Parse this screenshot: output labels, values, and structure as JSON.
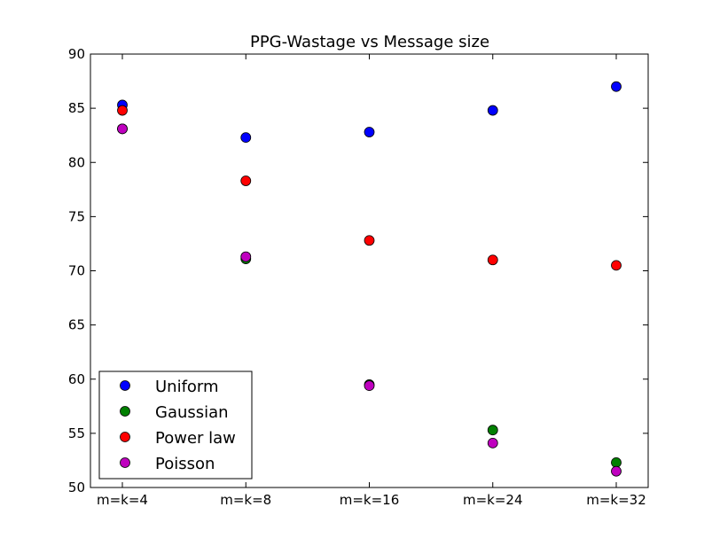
{
  "chart_data": {
    "type": "scatter",
    "title": "PPG-Wastage vs Message size",
    "xlabel": "",
    "ylabel": "",
    "categories": [
      "m=k=4",
      "m=k=8",
      "m=k=16",
      "m=k=24",
      "m=k=32"
    ],
    "ylim": [
      50,
      90
    ],
    "yticks": [
      50,
      55,
      60,
      65,
      70,
      75,
      80,
      85,
      90
    ],
    "grid": false,
    "legend_position": "bottom-left",
    "series": [
      {
        "name": "Uniform",
        "color": "#0000ff",
        "values": [
          85.3,
          82.3,
          82.8,
          84.8,
          87.0
        ]
      },
      {
        "name": "Gaussian",
        "color": "#008000",
        "values": [
          83.1,
          71.1,
          59.5,
          55.3,
          52.3
        ]
      },
      {
        "name": "Power law",
        "color": "#ff0000",
        "values": [
          84.8,
          78.3,
          72.8,
          71.0,
          70.5
        ]
      },
      {
        "name": "Poisson",
        "color": "#bf00bf",
        "values": [
          83.1,
          71.3,
          59.4,
          54.1,
          51.5
        ]
      }
    ]
  }
}
